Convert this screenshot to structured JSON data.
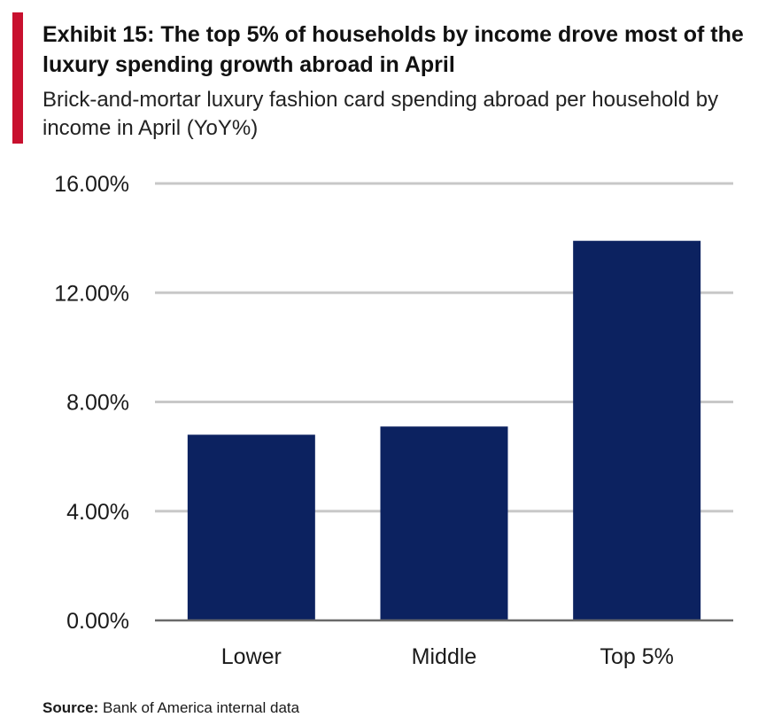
{
  "header": {
    "title": "Exhibit 15: The top 5% of households by income drove most of the luxury spending growth abroad in April",
    "subtitle": "Brick-and-mortar luxury fashion card spending abroad per household by income in April (YoY%)"
  },
  "footer": {
    "source_label": "Source:",
    "source_text": "Bank of America internal data"
  },
  "colors": {
    "accent": "#c8102e",
    "bar": "#0c2260",
    "grid": "#c8c8c8"
  },
  "chart_data": {
    "type": "bar",
    "categories": [
      "Lower",
      "Middle",
      "Top 5%"
    ],
    "values": [
      6.8,
      7.1,
      13.9
    ],
    "ylim": [
      0,
      16
    ],
    "yticks": [
      0,
      4,
      8,
      12,
      16
    ],
    "ytick_labels": [
      "0.00%",
      "4.00%",
      "8.00%",
      "12.00%",
      "16.00%"
    ],
    "xlabel": "",
    "ylabel": "",
    "grid": true
  }
}
